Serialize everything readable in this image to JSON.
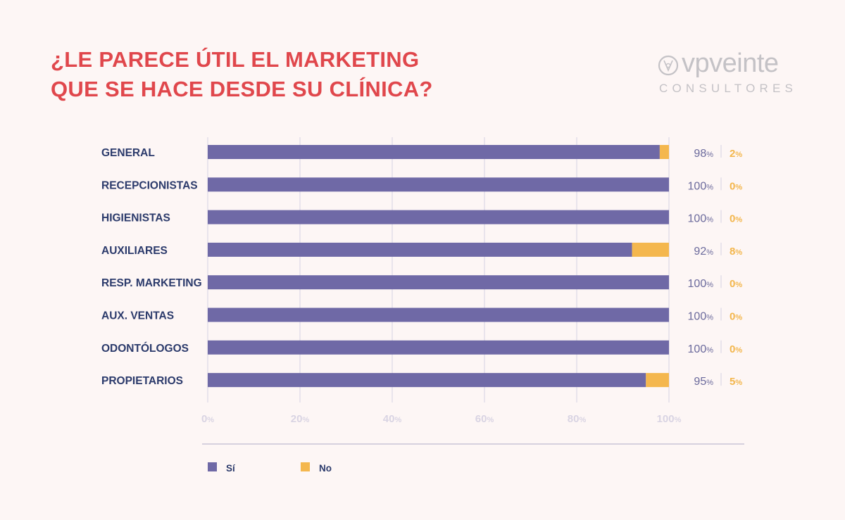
{
  "title": {
    "line1": "¿LE PARECE ÚTIL EL MARKETING",
    "line2": "QUE SE HACE DESDE SU CLÍNICA?"
  },
  "logo": {
    "word_vp": "vp",
    "word_veinte": "veinte",
    "subtitle": "CONSULTORES"
  },
  "colors": {
    "background": "#fdf6f5",
    "title": "#e0474c",
    "yes": "#6f69a6",
    "no": "#f4b74e",
    "label": "#2b3a6b",
    "grid": "#dcd8e6",
    "logo": "#c4c2c6"
  },
  "percent_sign": "%",
  "chart_data": {
    "type": "bar",
    "orientation": "horizontal",
    "stacked": true,
    "categories": [
      "GENERAL",
      "RECEPCIONISTAS",
      "HIGIENISTAS",
      "AUXILIARES",
      "RESP. MARKETING",
      "AUX. VENTAS",
      "ODONTÓLOGOS",
      "PROPIETARIOS"
    ],
    "series": [
      {
        "name": "Sí",
        "color": "#6f69a6",
        "values": [
          98,
          100,
          100,
          92,
          100,
          100,
          100,
          95
        ]
      },
      {
        "name": "No",
        "color": "#f4b74e",
        "values": [
          2,
          0,
          0,
          8,
          0,
          0,
          0,
          5
        ]
      }
    ],
    "xlim": [
      0,
      100
    ],
    "xticks": [
      0,
      20,
      40,
      60,
      80,
      100
    ],
    "grid": true,
    "legend_position": "bottom-left"
  }
}
